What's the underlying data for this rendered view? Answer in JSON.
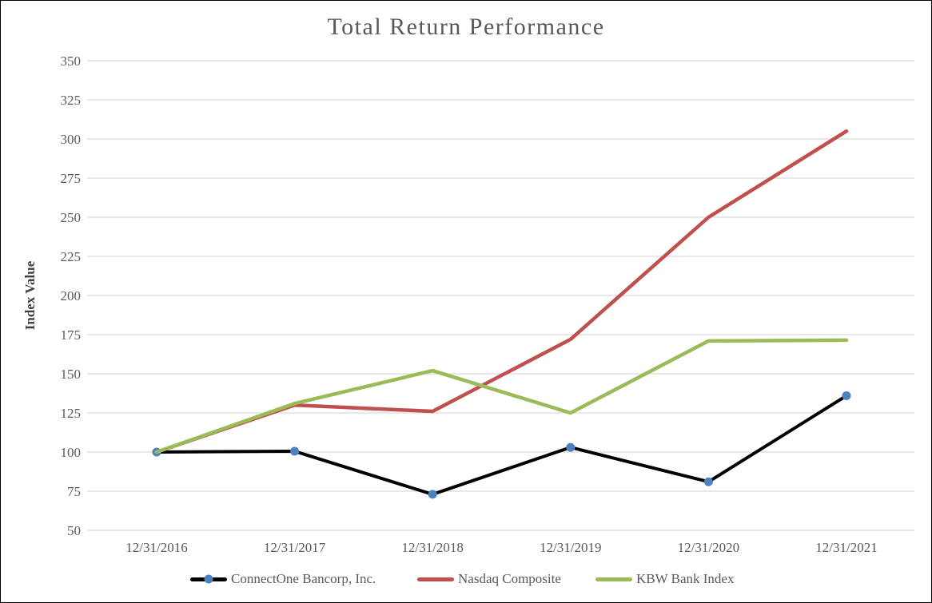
{
  "title": "Total Return Performance",
  "chart_data": {
    "type": "line",
    "title": "Total Return Performance",
    "xlabel": "",
    "ylabel": "Index Value",
    "ylim": [
      50,
      350
    ],
    "y_ticks": [
      350,
      325,
      300,
      275,
      250,
      225,
      200,
      175,
      150,
      125,
      100,
      75,
      50
    ],
    "grid": true,
    "legend_position": "bottom",
    "categories": [
      "12/31/2016",
      "12/31/2017",
      "12/31/2018",
      "12/31/2019",
      "12/31/2020",
      "12/31/2021"
    ],
    "series": [
      {
        "name": "ConnectOne Bancorp, Inc.",
        "color": "#000000",
        "line_width": 4,
        "marker": "circle",
        "marker_color": "#4F81BD",
        "values": [
          100,
          100.5,
          73,
          103,
          81,
          136
        ]
      },
      {
        "name": "Nasdaq Composite",
        "color": "#C0504D",
        "line_width": 4.5,
        "marker": "none",
        "values": [
          100,
          130,
          126,
          172,
          250,
          305
        ]
      },
      {
        "name": "KBW Bank Index",
        "color": "#9BBB59",
        "line_width": 4.5,
        "marker": "none",
        "values": [
          100,
          131,
          152,
          125,
          171,
          171.5
        ]
      }
    ],
    "colors": {
      "grid_line": "#D9D9D9",
      "tick_text": "#595959",
      "axis_title_text": "#404040",
      "title_text": "#595959"
    }
  }
}
